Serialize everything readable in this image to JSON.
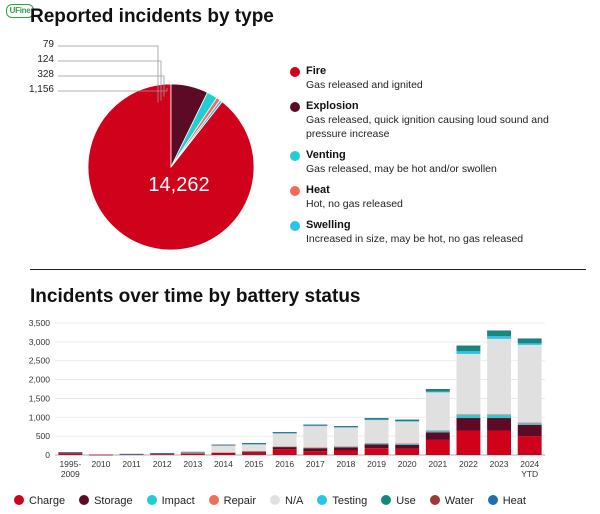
{
  "brand": {
    "logo_text": "UFine"
  },
  "chart_data": [
    {
      "type": "pie",
      "title": "Reported incidents by type",
      "slices": [
        {
          "name": "Fire",
          "value": 14262,
          "color": "#d0021b",
          "label": "14,262",
          "desc": "Gas released and ignited"
        },
        {
          "name": "Explosion",
          "value": 1156,
          "color": "#5c0a26",
          "label": "1,156",
          "desc": "Gas released, quick ignition causing loud sound and pressure increase"
        },
        {
          "name": "Venting",
          "value": 328,
          "color": "#1fcfd4",
          "label": "328",
          "desc": "Gas released, may be hot and/or swollen"
        },
        {
          "name": "Heat",
          "value": 124,
          "color": "#f26b5b",
          "label": "124",
          "desc": "Hot, no gas released"
        },
        {
          "name": "Swelling",
          "value": 79,
          "color": "#28c4ea",
          "label": "79",
          "desc": "Increased in size, may be hot, no gas released"
        }
      ]
    },
    {
      "type": "bar",
      "stacked": true,
      "title": "Incidents over time by battery status",
      "categories": [
        "1995-2009",
        "2010",
        "2011",
        "2012",
        "2013",
        "2014",
        "2015",
        "2016",
        "2017",
        "2018",
        "2019",
        "2020",
        "2021",
        "2022",
        "2023",
        "2024 YTD"
      ],
      "ylim": [
        0,
        3500
      ],
      "yticks": [
        "0",
        "500",
        "1,000",
        "1,500",
        "2,000",
        "2,500",
        "3,000",
        "3,500"
      ],
      "ytick_values": [
        0,
        500,
        1000,
        1500,
        2000,
        2500,
        3000,
        3500
      ],
      "grid": true,
      "legend_position": "bottom",
      "series": [
        {
          "name": "Charge",
          "color": "#d0021b",
          "values": [
            40,
            5,
            15,
            20,
            30,
            40,
            60,
            150,
            100,
            120,
            180,
            170,
            400,
            650,
            650,
            500
          ]
        },
        {
          "name": "Storage",
          "color": "#5c0a26",
          "values": [
            15,
            3,
            5,
            10,
            15,
            20,
            30,
            60,
            80,
            80,
            100,
            100,
            200,
            330,
            330,
            300
          ]
        },
        {
          "name": "Impact",
          "color": "#1fcfd4",
          "values": [
            5,
            0,
            2,
            5,
            5,
            5,
            10,
            15,
            15,
            20,
            25,
            25,
            40,
            80,
            80,
            40
          ]
        },
        {
          "name": "Repair",
          "color": "#f26b5b",
          "values": [
            2,
            0,
            1,
            2,
            2,
            3,
            5,
            5,
            5,
            5,
            10,
            10,
            10,
            20,
            20,
            20
          ]
        },
        {
          "name": "N/A",
          "color": "#e0e0e0",
          "values": [
            0,
            0,
            0,
            5,
            20,
            190,
            180,
            340,
            570,
            500,
            610,
            580,
            1010,
            1600,
            2000,
            2060
          ]
        },
        {
          "name": "Testing",
          "color": "#28c4ea",
          "values": [
            3,
            0,
            2,
            2,
            3,
            5,
            5,
            10,
            10,
            15,
            15,
            15,
            20,
            70,
            70,
            40
          ]
        },
        {
          "name": "Use",
          "color": "#148a7e",
          "values": [
            5,
            0,
            2,
            2,
            5,
            7,
            20,
            20,
            20,
            20,
            30,
            30,
            60,
            140,
            140,
            120
          ]
        },
        {
          "name": "Water",
          "color": "#9e3a36",
          "values": [
            2,
            0,
            1,
            2,
            2,
            2,
            3,
            3,
            3,
            3,
            4,
            4,
            5,
            6,
            6,
            5
          ]
        },
        {
          "name": "Heat",
          "color": "#1f6fae",
          "values": [
            1,
            0,
            1,
            1,
            1,
            1,
            2,
            2,
            2,
            2,
            3,
            3,
            4,
            5,
            5,
            5
          ]
        }
      ]
    }
  ]
}
